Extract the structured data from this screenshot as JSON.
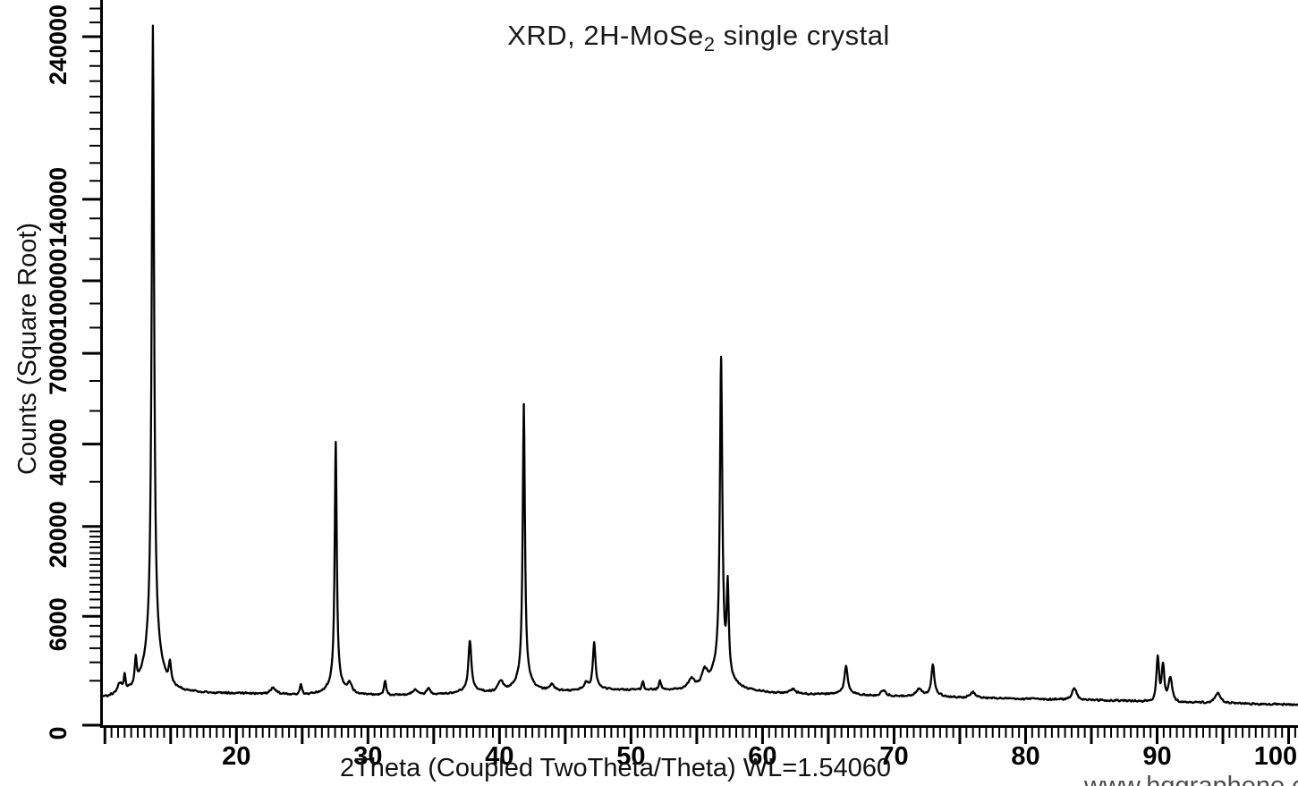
{
  "title": {
    "prefix": "XRD, 2H-MoSe",
    "subscript": "2",
    "suffix": " single crystal"
  },
  "x_axis": {
    "label": "2Theta (Coupled TwoTheta/Theta) WL=1.54060",
    "tick_labels": [
      "20",
      "30",
      "40",
      "50",
      "60",
      "70",
      "80",
      "90",
      "100"
    ]
  },
  "y_axis": {
    "label": "Counts (Square Root)",
    "tick_labels": [
      "0",
      "6000",
      "20000",
      "40000",
      "70000",
      "100000",
      "140000",
      "240000"
    ]
  },
  "watermark": "www.hqgraphene.com",
  "colors": {
    "foreground": "#000000",
    "background": "#ffffff",
    "trace": "#000000",
    "watermark": "#4d4d4d"
  },
  "chart_data": {
    "type": "line",
    "title": "XRD, 2H-MoSe2 single crystal",
    "xlabel": "2Theta (Coupled TwoTheta/Theta) WL=1.54060",
    "ylabel": "Counts (Square Root)",
    "x_range": [
      9.74,
      100.72
    ],
    "y_scale": "sqrt",
    "y_range": [
      0,
      266000
    ],
    "grid": false,
    "x_labeled_ticks": [
      20,
      30,
      40,
      50,
      60,
      70,
      80,
      90,
      100
    ],
    "x_major_tick_step": 5,
    "x_minor_tick_step": 0.5,
    "y_labeled_ticks": [
      0,
      6000,
      20000,
      40000,
      70000,
      100000,
      140000,
      240000
    ],
    "y_minor_ticks_fine": {
      "from": 1000,
      "to": 20000,
      "step": 1000
    },
    "y_minor_ticks_coarse": {
      "from": 20000,
      "to": 260000,
      "step": 10000
    },
    "baseline_anchors": [
      [
        9.74,
        330
      ],
      [
        11,
        400
      ],
      [
        12,
        430
      ],
      [
        16,
        480
      ],
      [
        20,
        500
      ],
      [
        24,
        470
      ],
      [
        28,
        460
      ],
      [
        32,
        460
      ],
      [
        36,
        480
      ],
      [
        40,
        520
      ],
      [
        44,
        560
      ],
      [
        48,
        620
      ],
      [
        52,
        620
      ],
      [
        56,
        580
      ],
      [
        60,
        520
      ],
      [
        64,
        470
      ],
      [
        68,
        430
      ],
      [
        72,
        400
      ],
      [
        76,
        380
      ],
      [
        80,
        350
      ],
      [
        84,
        330
      ],
      [
        88,
        300
      ],
      [
        92,
        270
      ],
      [
        96,
        240
      ],
      [
        100.72,
        215
      ]
    ],
    "peaks": [
      {
        "two_theta": 11.15,
        "counts": 750,
        "width": 0.25
      },
      {
        "two_theta": 11.5,
        "counts": 1040,
        "width": 0.1
      },
      {
        "two_theta": 12.35,
        "counts": 1870,
        "width": 0.1
      },
      {
        "two_theta": 13.65,
        "counts": 243500,
        "width": 0.095,
        "tail_counts": 4200,
        "tail_width": 0.5
      },
      {
        "two_theta": 14.95,
        "counts": 1550,
        "width": 0.12
      },
      {
        "two_theta": 22.8,
        "counts": 700,
        "width": 0.3
      },
      {
        "two_theta": 24.9,
        "counts": 820,
        "width": 0.12
      },
      {
        "two_theta": 27.55,
        "counts": 39500,
        "width": 0.085,
        "tail_counts": 900,
        "tail_width": 0.45
      },
      {
        "two_theta": 28.6,
        "counts": 820,
        "width": 0.25
      },
      {
        "two_theta": 31.3,
        "counts": 970,
        "width": 0.12
      },
      {
        "two_theta": 33.6,
        "counts": 620,
        "width": 0.3
      },
      {
        "two_theta": 34.6,
        "counts": 660,
        "width": 0.2
      },
      {
        "two_theta": 37.75,
        "counts": 3350,
        "width": 0.14,
        "tail_counts": 250,
        "tail_width": 0.6
      },
      {
        "two_theta": 40.1,
        "counts": 920,
        "width": 0.3
      },
      {
        "two_theta": 41.85,
        "counts": 51200,
        "width": 0.09,
        "tail_counts": 1100,
        "tail_width": 0.5
      },
      {
        "two_theta": 44.0,
        "counts": 780,
        "width": 0.3
      },
      {
        "two_theta": 46.6,
        "counts": 830,
        "width": 0.2
      },
      {
        "two_theta": 47.2,
        "counts": 3200,
        "width": 0.13,
        "tail_counts": 200,
        "tail_width": 0.6
      },
      {
        "two_theta": 50.9,
        "counts": 950,
        "width": 0.1
      },
      {
        "two_theta": 52.2,
        "counts": 980,
        "width": 0.12
      },
      {
        "two_theta": 54.6,
        "counts": 1020,
        "width": 0.35
      },
      {
        "two_theta": 55.6,
        "counts": 1300,
        "width": 0.3
      },
      {
        "two_theta": 56.85,
        "counts": 66500,
        "width": 0.1,
        "tail_counts": 2200,
        "tail_width": 0.55
      },
      {
        "two_theta": 57.35,
        "counts": 9500,
        "width": 0.1
      },
      {
        "two_theta": 62.3,
        "counts": 650,
        "width": 0.3
      },
      {
        "two_theta": 66.35,
        "counts": 1660,
        "width": 0.16,
        "tail_counts": 120,
        "tail_width": 0.8
      },
      {
        "two_theta": 69.2,
        "counts": 600,
        "width": 0.3
      },
      {
        "two_theta": 71.9,
        "counts": 640,
        "width": 0.3
      },
      {
        "two_theta": 72.95,
        "counts": 1710,
        "width": 0.14,
        "tail_counts": 150,
        "tail_width": 0.6
      },
      {
        "two_theta": 76.0,
        "counts": 550,
        "width": 0.3
      },
      {
        "two_theta": 83.7,
        "counts": 700,
        "width": 0.25
      },
      {
        "two_theta": 90.05,
        "counts": 2400,
        "width": 0.13
      },
      {
        "two_theta": 90.45,
        "counts": 1900,
        "width": 0.13
      },
      {
        "two_theta": 91.0,
        "counts": 1150,
        "width": 0.2
      },
      {
        "two_theta": 94.6,
        "counts": 520,
        "width": 0.3
      }
    ]
  }
}
